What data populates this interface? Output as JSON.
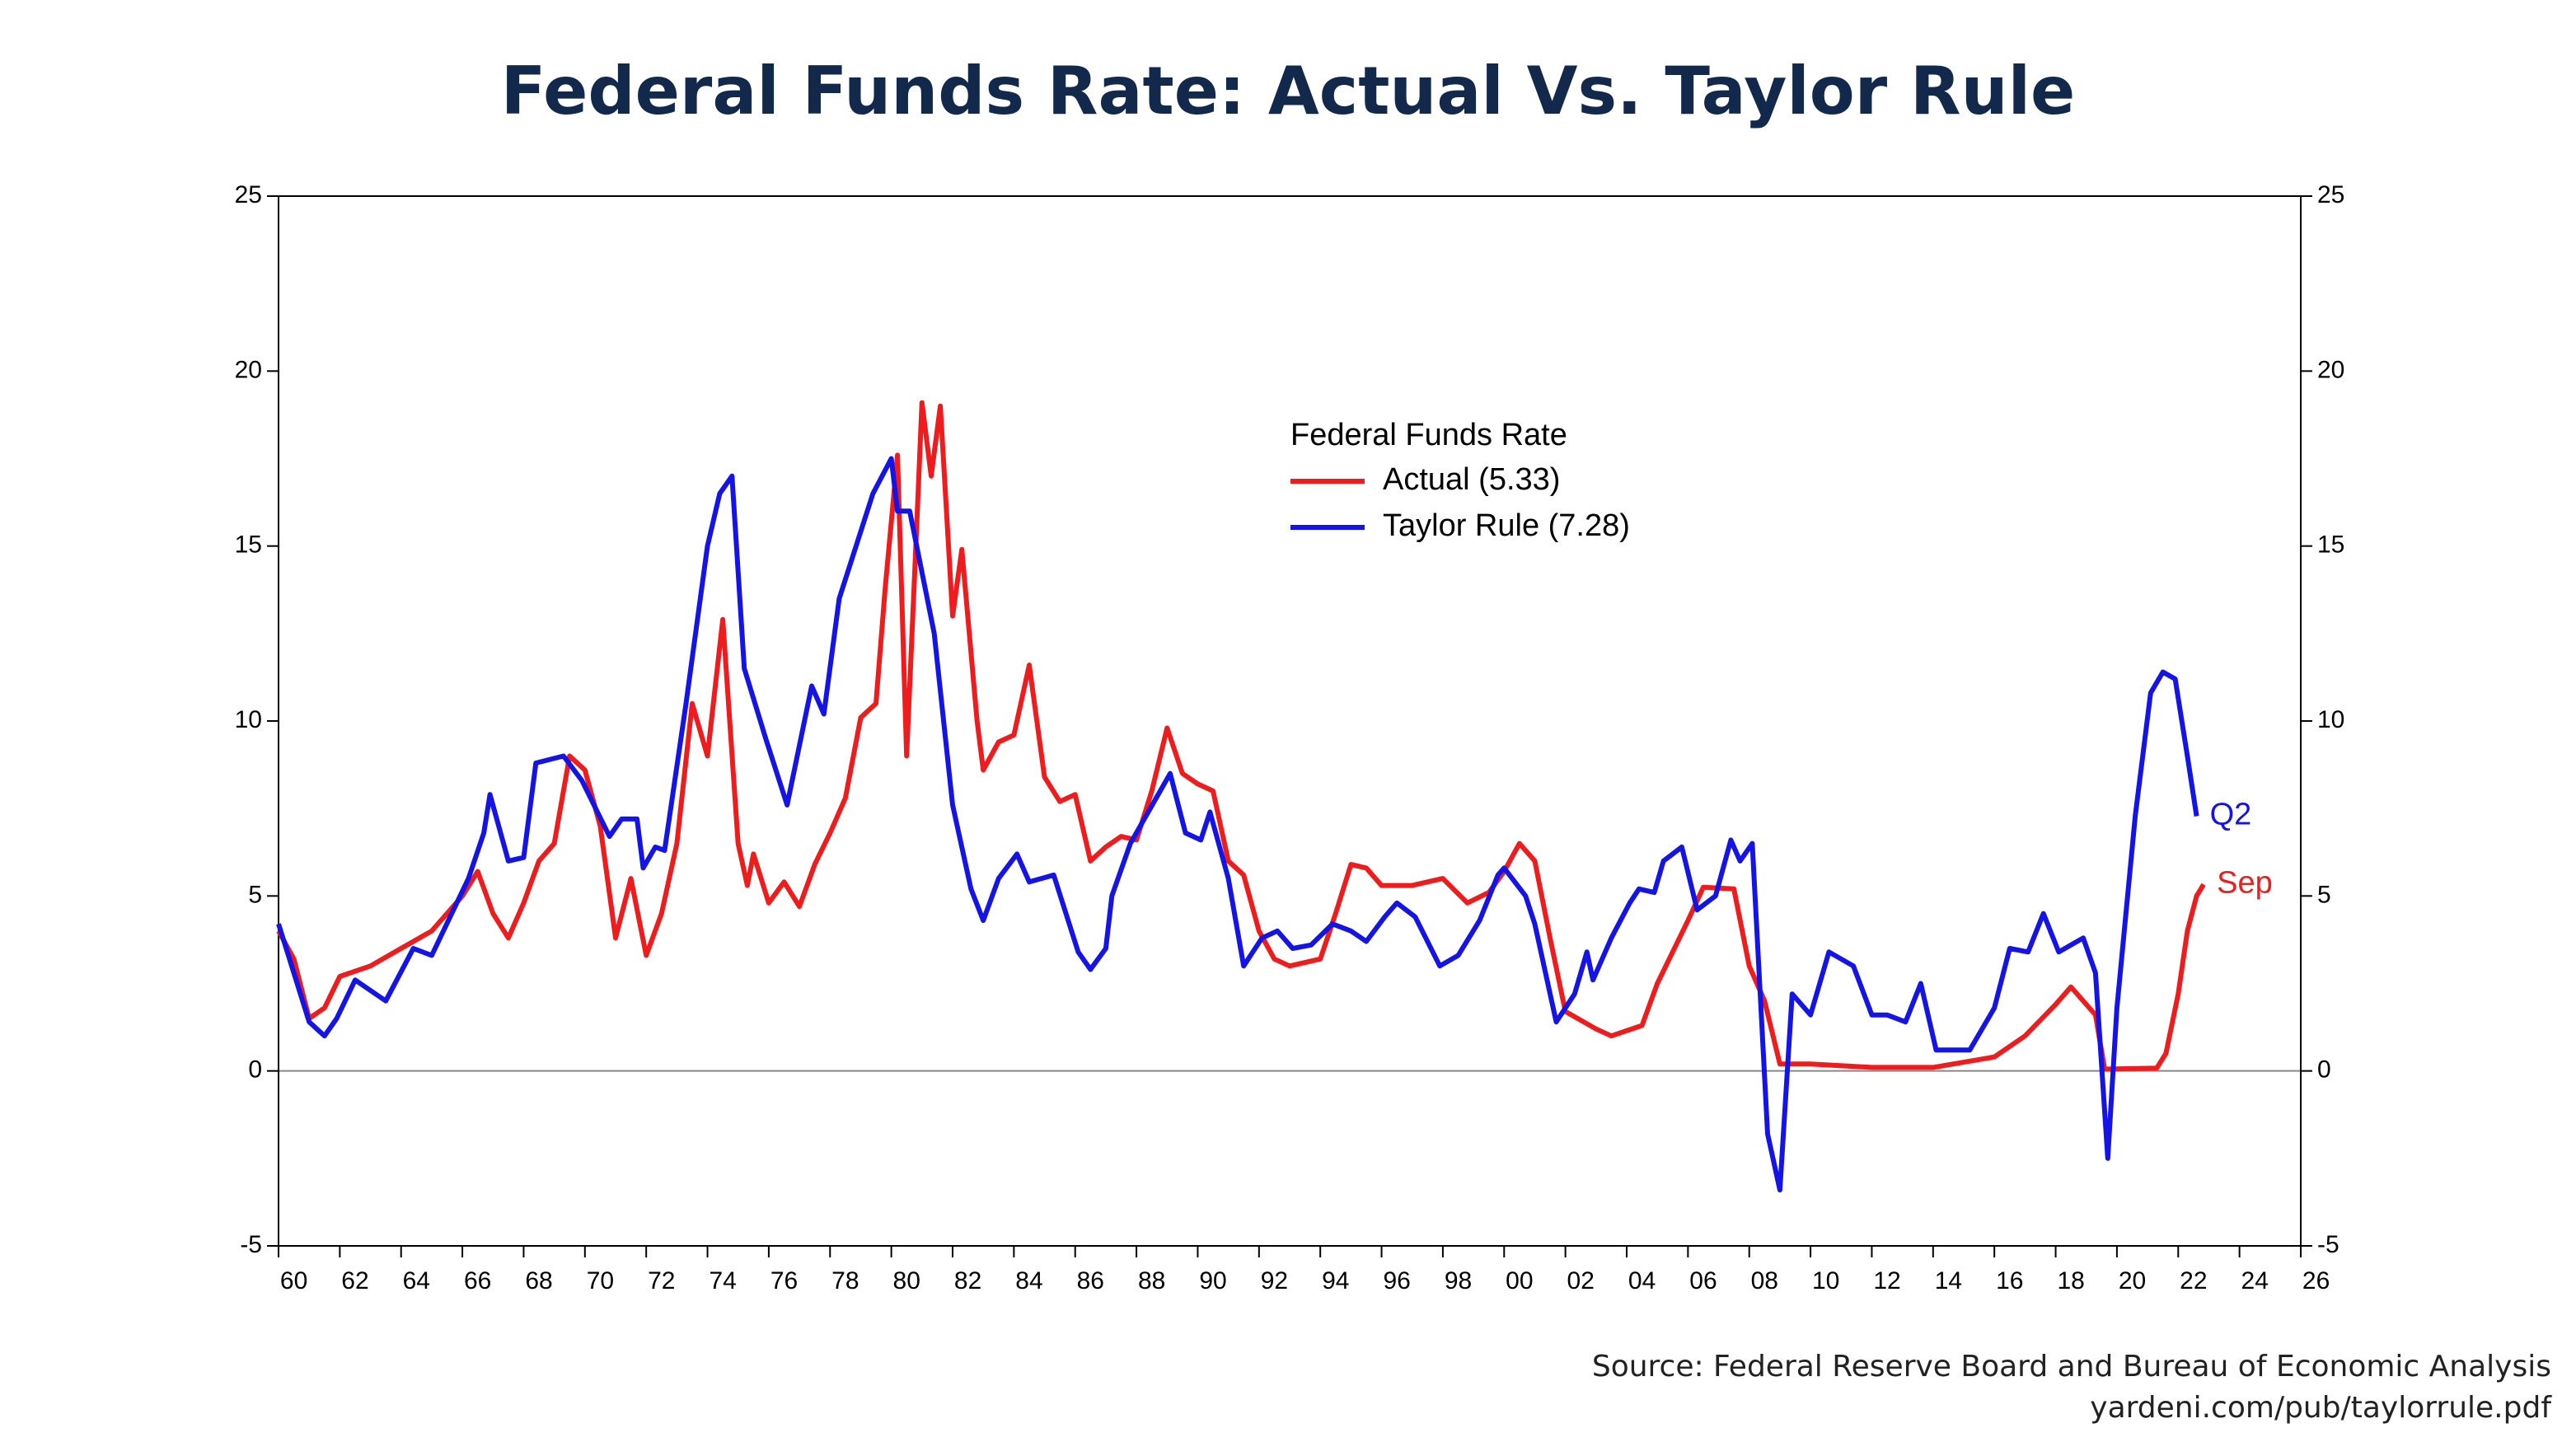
{
  "chart_data": {
    "type": "line",
    "title": "Federal Funds Rate: Actual Vs. Taylor Rule",
    "legend_title": "Federal Funds Rate",
    "source": [
      "Source: Federal Reserve Board and Bureau of Economic Analysis",
      "yardeni.com/pub/taylorrule.pdf"
    ],
    "xlim": [
      1960,
      2026
    ],
    "xticks": [
      {
        "value": 1960,
        "label": "60"
      },
      {
        "value": 1962,
        "label": "62"
      },
      {
        "value": 1964,
        "label": "64"
      },
      {
        "value": 1966,
        "label": "66"
      },
      {
        "value": 1968,
        "label": "68"
      },
      {
        "value": 1970,
        "label": "70"
      },
      {
        "value": 1972,
        "label": "72"
      },
      {
        "value": 1974,
        "label": "74"
      },
      {
        "value": 1976,
        "label": "76"
      },
      {
        "value": 1978,
        "label": "78"
      },
      {
        "value": 1980,
        "label": "80"
      },
      {
        "value": 1982,
        "label": "82"
      },
      {
        "value": 1984,
        "label": "84"
      },
      {
        "value": 1986,
        "label": "86"
      },
      {
        "value": 1988,
        "label": "88"
      },
      {
        "value": 1990,
        "label": "90"
      },
      {
        "value": 1992,
        "label": "92"
      },
      {
        "value": 1994,
        "label": "94"
      },
      {
        "value": 1996,
        "label": "96"
      },
      {
        "value": 1998,
        "label": "98"
      },
      {
        "value": 2000,
        "label": "00"
      },
      {
        "value": 2002,
        "label": "02"
      },
      {
        "value": 2004,
        "label": "04"
      },
      {
        "value": 2006,
        "label": "06"
      },
      {
        "value": 2008,
        "label": "08"
      },
      {
        "value": 2010,
        "label": "10"
      },
      {
        "value": 2012,
        "label": "12"
      },
      {
        "value": 2014,
        "label": "14"
      },
      {
        "value": 2016,
        "label": "16"
      },
      {
        "value": 2018,
        "label": "18"
      },
      {
        "value": 2020,
        "label": "20"
      },
      {
        "value": 2022,
        "label": "22"
      },
      {
        "value": 2024,
        "label": "24"
      },
      {
        "value": 2026,
        "label": "26"
      }
    ],
    "ylim": [
      -5,
      25
    ],
    "yticks": [
      -5,
      0,
      5,
      10,
      15,
      20,
      25
    ],
    "y2lim": [
      -5,
      25
    ],
    "y2ticks": [
      -5,
      0,
      5,
      10,
      15,
      20,
      25
    ],
    "series": [
      {
        "name": "Actual (5.33)",
        "color": "#ee1c1c",
        "end_label": "Sep",
        "x": [
          1960,
          1960.5,
          1961,
          1961.5,
          1962,
          1963,
          1964,
          1965,
          1966,
          1966.5,
          1967,
          1967.5,
          1968,
          1968.5,
          1969,
          1969.5,
          1970,
          1970.5,
          1971,
          1971.5,
          1972,
          1972.5,
          1973,
          1973.5,
          1974,
          1974.5,
          1975,
          1975.3,
          1975.5,
          1976,
          1976.5,
          1977,
          1977.5,
          1978,
          1978.5,
          1979,
          1979.5,
          1979.8,
          1980.2,
          1980.5,
          1980.8,
          1981,
          1981.3,
          1981.6,
          1982,
          1982.3,
          1982.8,
          1983,
          1983.5,
          1984,
          1984.5,
          1985,
          1985.5,
          1986,
          1986.5,
          1987,
          1987.5,
          1988,
          1988.5,
          1989,
          1989.5,
          1990,
          1990.5,
          1991,
          1991.5,
          1992,
          1992.5,
          1993,
          1994,
          1994.5,
          1995,
          1995.5,
          1996,
          1997,
          1998,
          1998.8,
          1999.5,
          2000,
          2000.5,
          2001,
          2001.5,
          2002,
          2003,
          2003.5,
          2004.5,
          2005,
          2006,
          2006.5,
          2007.5,
          2008,
          2008.5,
          2009,
          2010,
          2012,
          2014,
          2016,
          2017,
          2018,
          2018.5,
          2019.3,
          2019.6,
          2021.3,
          2021.6,
          2022.0,
          2022.3,
          2022.6,
          2022.83
        ],
        "values": [
          4.0,
          3.2,
          1.5,
          1.8,
          2.7,
          3.0,
          3.5,
          4.0,
          5.0,
          5.7,
          4.5,
          3.8,
          4.8,
          6.0,
          6.5,
          9.0,
          8.6,
          7.0,
          3.8,
          5.5,
          3.3,
          4.5,
          6.5,
          10.5,
          9.0,
          12.9,
          6.5,
          5.3,
          6.2,
          4.8,
          5.4,
          4.7,
          5.9,
          6.8,
          7.8,
          10.1,
          10.5,
          13.8,
          17.6,
          9.0,
          15.0,
          19.1,
          17.0,
          19.0,
          13.0,
          14.9,
          10.0,
          8.6,
          9.4,
          9.6,
          11.6,
          8.4,
          7.7,
          7.9,
          6.0,
          6.4,
          6.7,
          6.6,
          8.0,
          9.8,
          8.5,
          8.2,
          8.0,
          6.0,
          5.6,
          4.0,
          3.2,
          3.0,
          3.2,
          4.5,
          5.9,
          5.8,
          5.3,
          5.3,
          5.5,
          4.8,
          5.1,
          5.7,
          6.5,
          6.0,
          3.8,
          1.7,
          1.2,
          1.0,
          1.3,
          2.5,
          4.3,
          5.25,
          5.2,
          3.0,
          2.0,
          0.2,
          0.2,
          0.1,
          0.1,
          0.4,
          1.0,
          1.9,
          2.4,
          1.6,
          0.05,
          0.08,
          0.5,
          2.2,
          4.0,
          5.0,
          5.33
        ]
      },
      {
        "name": "Taylor Rule (7.28)",
        "color": "#1414e6",
        "end_label": "Q2",
        "x": [
          1960,
          1961,
          1961.5,
          1961.9,
          1962.5,
          1963.5,
          1964.1,
          1964.4,
          1965,
          1966.2,
          1966.7,
          1966.9,
          1967.5,
          1968,
          1968.4,
          1969.3,
          1969.9,
          1970.8,
          1971.2,
          1971.7,
          1971.9,
          1972.3,
          1972.6,
          1973.3,
          1974,
          1974.4,
          1974.8,
          1975.2,
          1975.9,
          1976.6,
          1977.4,
          1977.8,
          1978.3,
          1979.4,
          1980,
          1980.2,
          1980.6,
          1981.4,
          1982,
          1982.6,
          1983,
          1983.5,
          1984.1,
          1984.5,
          1985.3,
          1986.1,
          1986.5,
          1987,
          1987.2,
          1987.8,
          1989.1,
          1989.6,
          1990.1,
          1990.4,
          1991,
          1991.5,
          1992.1,
          1992.6,
          1993.1,
          1993.7,
          1994.4,
          1995,
          1995.5,
          1996.1,
          1996.5,
          1997.1,
          1997.9,
          1998.5,
          1999.2,
          1999.8,
          2000,
          2000.7,
          2001,
          2001.7,
          2002.3,
          2002.7,
          2002.9,
          2003.5,
          2004.1,
          2004.4,
          2004.9,
          2005.2,
          2005.8,
          2006.3,
          2006.9,
          2007.4,
          2007.7,
          2008.1,
          2008.6,
          2009,
          2009.4,
          2010,
          2010.6,
          2011.4,
          2012,
          2012.5,
          2013.1,
          2013.6,
          2014.1,
          2015.2,
          2016,
          2016.5,
          2017.1,
          2017.6,
          2018.1,
          2018.9,
          2019.3,
          2019.7,
          2020,
          2020.6,
          2021.1,
          2021.5,
          2021.9,
          2022.3,
          2022.6
        ],
        "values": [
          4.2,
          1.4,
          1.0,
          1.5,
          2.6,
          2.0,
          3.0,
          3.5,
          3.3,
          5.5,
          6.8,
          7.9,
          6.0,
          6.1,
          8.8,
          9.0,
          8.3,
          6.7,
          7.2,
          7.2,
          5.8,
          6.4,
          6.3,
          10.5,
          15.0,
          16.5,
          17.0,
          11.5,
          9.5,
          7.6,
          11.0,
          10.2,
          13.5,
          16.5,
          17.5,
          16.0,
          16.0,
          12.5,
          7.6,
          5.2,
          4.3,
          5.5,
          6.2,
          5.4,
          5.6,
          3.4,
          2.9,
          3.5,
          5.0,
          6.5,
          8.5,
          6.8,
          6.6,
          7.4,
          5.5,
          3.0,
          3.8,
          4.0,
          3.5,
          3.6,
          4.2,
          4.0,
          3.7,
          4.4,
          4.8,
          4.4,
          3.0,
          3.3,
          4.3,
          5.6,
          5.8,
          5.0,
          4.2,
          1.4,
          2.2,
          3.4,
          2.6,
          3.8,
          4.8,
          5.2,
          5.1,
          6.0,
          6.4,
          4.6,
          5.0,
          6.6,
          6.0,
          6.5,
          -1.8,
          -3.4,
          2.2,
          1.6,
          3.4,
          3.0,
          1.6,
          1.6,
          1.4,
          2.5,
          0.6,
          0.6,
          1.8,
          3.5,
          3.4,
          4.5,
          3.4,
          3.8,
          2.8,
          -2.5,
          1.8,
          7.3,
          10.8,
          11.4,
          11.2,
          9.0,
          7.28
        ]
      }
    ]
  }
}
